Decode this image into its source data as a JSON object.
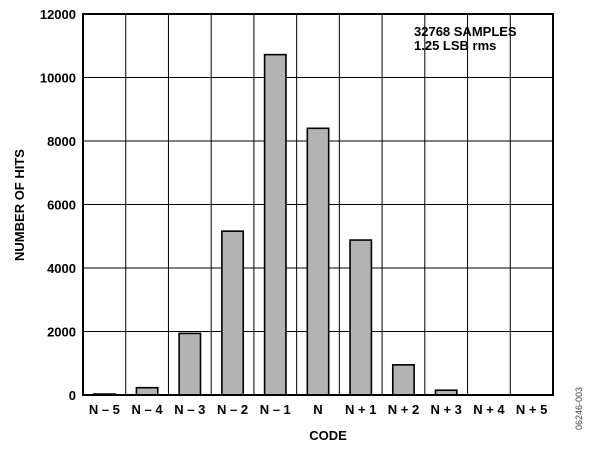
{
  "chart_data": {
    "type": "bar",
    "categories": [
      "N – 5",
      "N – 4",
      "N – 3",
      "N – 2",
      "N – 1",
      "N",
      "N + 1",
      "N + 2",
      "N + 3",
      "N + 4",
      "N + 5"
    ],
    "values": [
      30,
      230,
      1940,
      5160,
      10720,
      8400,
      4880,
      950,
      150,
      0,
      0
    ],
    "xlabel": "CODE",
    "ylabel": "NUMBER OF HITS",
    "ylim": [
      0,
      12000
    ],
    "yticks": [
      0,
      2000,
      4000,
      6000,
      8000,
      10000,
      12000
    ],
    "grid": true,
    "bar_color": "#b3b3b3",
    "annotations": [
      "32768 SAMPLES",
      "1.25 LSB rms"
    ],
    "figure_id": "06246-003"
  }
}
